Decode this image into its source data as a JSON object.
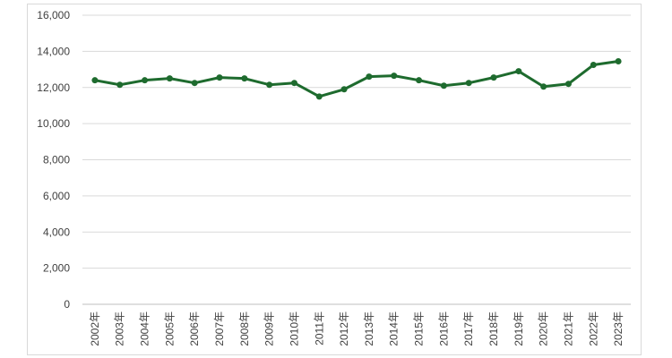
{
  "chart_data": {
    "type": "line",
    "title": "",
    "xlabel": "",
    "ylabel": "",
    "ylim": [
      0,
      16000
    ],
    "yticks": [
      "0",
      "2,000",
      "4,000",
      "6,000",
      "8,000",
      "10,000",
      "12,000",
      "14,000",
      "16,000"
    ],
    "categories": [
      "2002年",
      "2003年",
      "2004年",
      "2005年",
      "2006年",
      "2007年",
      "2008年",
      "2009年",
      "2010年",
      "2011年",
      "2012年",
      "2013年",
      "2014年",
      "2015年",
      "2016年",
      "2017年",
      "2018年",
      "2019年",
      "2020年",
      "2021年",
      "2022年",
      "2023年"
    ],
    "series": [
      {
        "values": [
          12400,
          12150,
          12400,
          12500,
          12250,
          12550,
          12500,
          12150,
          12250,
          11500,
          11900,
          12600,
          12650,
          12400,
          12100,
          12250,
          12550,
          12900,
          12050,
          12200,
          13250,
          13450
        ],
        "color": "#1e6b2e"
      }
    ],
    "grid": true,
    "legend": "none"
  }
}
